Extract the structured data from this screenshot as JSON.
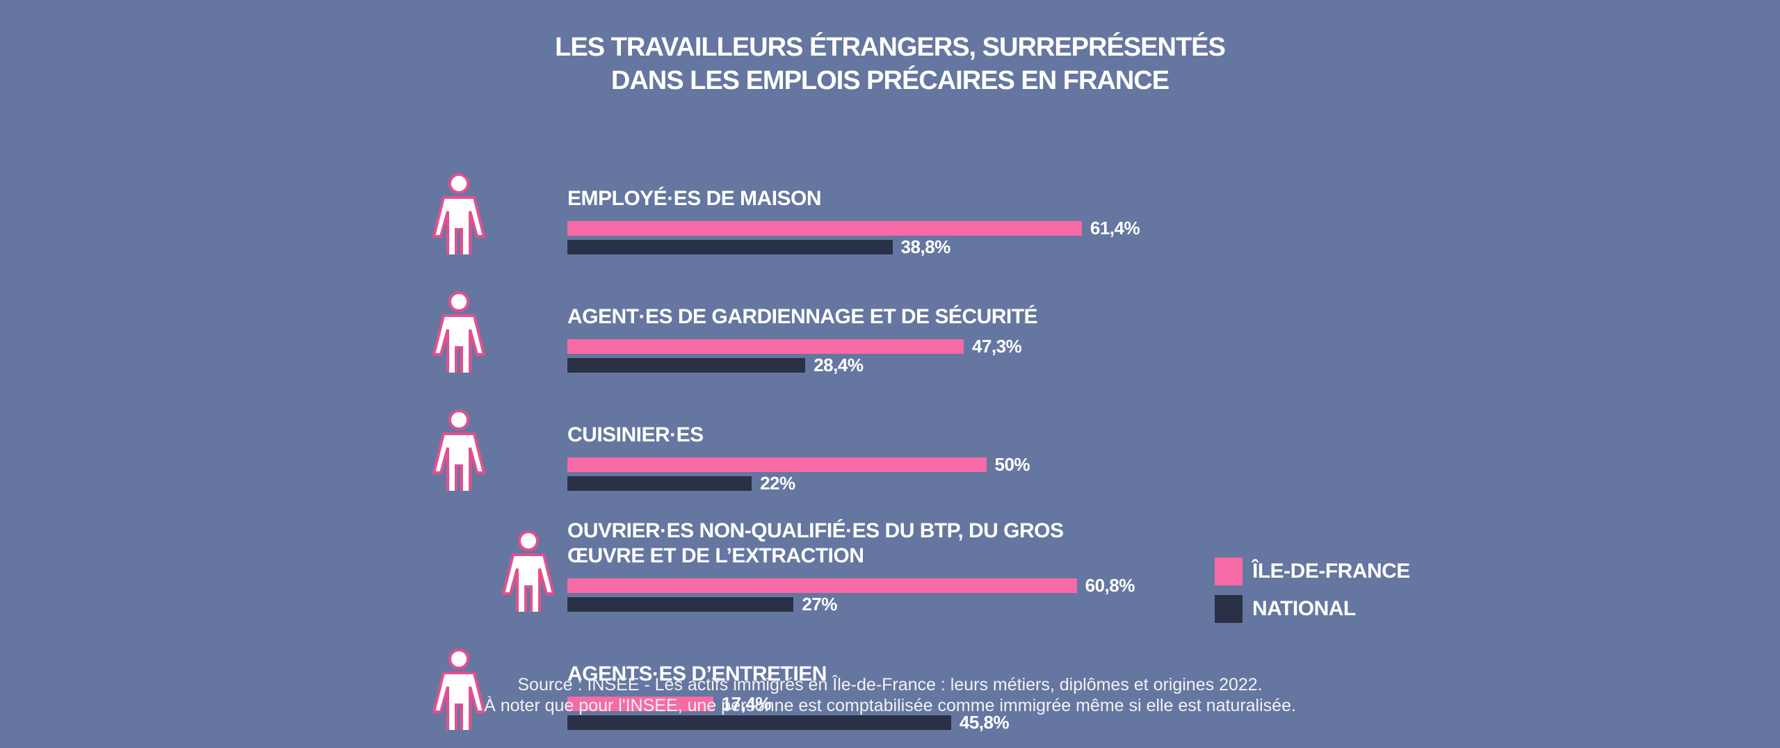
{
  "chart_data": {
    "type": "bar",
    "orientation": "horizontal",
    "title": [
      "LES TRAVAILLEURS ÉTRANGERS, SURREPRÉSENTÉS",
      "DANS LES EMPLOIS PRÉCAIRES EN FRANCE"
    ],
    "categories": [
      "EMPLOYÉ·ES DE MAISON",
      "AGENT·ES DE GARDIENNAGE ET DE SÉCURITÉ",
      "CUISINIER·ES",
      "OUVRIER·ES NON-QUALIFIÉ·ES DU BTP, DU GROS ŒUVRE ET DE L’EXTRACTION",
      "AGENTS·ES D’ENTRETIEN"
    ],
    "series": [
      {
        "name": "ÎLE-DE-FRANCE",
        "color": "#f76aa5",
        "values": [
          61.4,
          47.3,
          50,
          60.8,
          17.4
        ],
        "value_labels": [
          "61,4%",
          "47,3%",
          "50%",
          "60,8%",
          "17,4%"
        ]
      },
      {
        "name": "NATIONAL",
        "color": "#2a3147",
        "values": [
          38.8,
          28.4,
          22,
          27,
          45.8
        ],
        "value_labels": [
          "38,8%",
          "28,4%",
          "22%",
          "27%",
          "45,8%"
        ]
      }
    ],
    "legend": "right",
    "source": [
      "Source : INSEE - Les actifs immigrés en Île-de-France : leurs métiers, diplômes et origines 2022.",
      "À noter que pour l'INSEE, une personne est comptabilisée comme immigrée même si elle est naturalisée."
    ]
  }
}
